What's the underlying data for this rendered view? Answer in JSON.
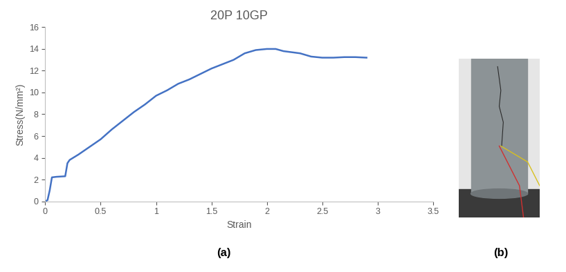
{
  "chart_data": {
    "type": "line",
    "title": "20P 10GP",
    "xlabel": "Strain",
    "ylabel": "Stress(N/mm²)",
    "x": [
      0,
      0.02,
      0.04,
      0.06,
      0.1,
      0.18,
      0.2,
      0.22,
      0.3,
      0.4,
      0.5,
      0.6,
      0.7,
      0.8,
      0.9,
      1.0,
      1.1,
      1.2,
      1.3,
      1.4,
      1.5,
      1.6,
      1.7,
      1.8,
      1.9,
      2.0,
      2.08,
      2.15,
      2.3,
      2.4,
      2.5,
      2.6,
      2.7,
      2.8,
      2.9
    ],
    "values": [
      0,
      0.1,
      1.0,
      2.2,
      2.25,
      2.3,
      3.5,
      3.8,
      4.3,
      5.0,
      5.7,
      6.6,
      7.4,
      8.2,
      8.9,
      9.7,
      10.2,
      10.8,
      11.2,
      11.7,
      12.2,
      12.6,
      13.0,
      13.6,
      13.9,
      14.0,
      14.0,
      13.8,
      13.6,
      13.3,
      13.2,
      13.2,
      13.25,
      13.25,
      13.2
    ],
    "color": "#4472c4",
    "xlim": [
      0,
      3.5
    ],
    "xticks": [
      0,
      0.5,
      1,
      1.5,
      2,
      2.5,
      3,
      3.5
    ],
    "ylim": [
      0,
      16
    ],
    "yticks": [
      0,
      2,
      4,
      6,
      8,
      10,
      12,
      14,
      16
    ],
    "grid": false,
    "annotations": [
      "(a)",
      "(b)"
    ]
  }
}
